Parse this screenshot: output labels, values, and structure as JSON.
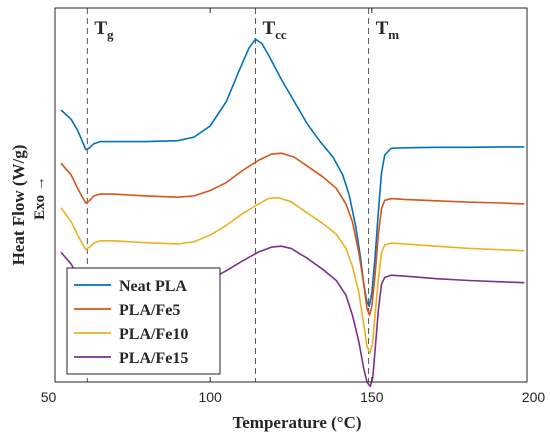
{
  "chart_data": {
    "type": "line",
    "xlabel": "Temperature (°C)",
    "ylabel": "Heat Flow (W/g)",
    "exo_label": "Exo →",
    "xlim": [
      52,
      198
    ],
    "ylim": [
      -5.2,
      3.2
    ],
    "x_ticks": [
      50,
      100,
      150,
      200
    ],
    "x_tick_labels": [
      "50",
      "100",
      "150",
      "200"
    ],
    "y_ticks_visible": false,
    "grid": false,
    "legend_position": "bottom-left",
    "markers": [
      {
        "main": "T",
        "sub": "g",
        "x": 62
      },
      {
        "main": "T",
        "sub": "cc",
        "x": 114
      },
      {
        "main": "T",
        "sub": "m",
        "x": 149
      }
    ],
    "series": [
      {
        "name": "Neat PLA",
        "color": "#0072BD",
        "points": [
          [
            54,
            0.9
          ],
          [
            57,
            0.7
          ],
          [
            59,
            0.45
          ],
          [
            60.5,
            0.2
          ],
          [
            61.5,
            0.02
          ],
          [
            62.5,
            0.05
          ],
          [
            64,
            0.15
          ],
          [
            66,
            0.2
          ],
          [
            70,
            0.2
          ],
          [
            80,
            0.2
          ],
          [
            90,
            0.22
          ],
          [
            95,
            0.3
          ],
          [
            100,
            0.55
          ],
          [
            105,
            1.1
          ],
          [
            109,
            1.8
          ],
          [
            112,
            2.3
          ],
          [
            114,
            2.5
          ],
          [
            116,
            2.4
          ],
          [
            118,
            2.15
          ],
          [
            122,
            1.6
          ],
          [
            126,
            1.1
          ],
          [
            130,
            0.6
          ],
          [
            134,
            0.2
          ],
          [
            138,
            -0.15
          ],
          [
            141,
            -0.55
          ],
          [
            143,
            -1.0
          ],
          [
            145,
            -1.7
          ],
          [
            146.5,
            -2.4
          ],
          [
            147.5,
            -3.0
          ],
          [
            148.5,
            -3.4
          ],
          [
            149.2,
            -3.5
          ],
          [
            150,
            -3.2
          ],
          [
            151,
            -2.4
          ],
          [
            152,
            -1.4
          ],
          [
            153,
            -0.5
          ],
          [
            154,
            -0.1
          ],
          [
            156,
            0.05
          ],
          [
            160,
            0.06
          ],
          [
            170,
            0.07
          ],
          [
            180,
            0.07
          ],
          [
            190,
            0.08
          ],
          [
            197,
            0.08
          ]
        ]
      },
      {
        "name": "PLA/Fe5",
        "color": "#D95319",
        "points": [
          [
            54,
            -0.3
          ],
          [
            57,
            -0.55
          ],
          [
            59,
            -0.85
          ],
          [
            60.5,
            -1.05
          ],
          [
            61.5,
            -1.18
          ],
          [
            62.5,
            -1.14
          ],
          [
            64,
            -1.02
          ],
          [
            66,
            -0.98
          ],
          [
            70,
            -0.98
          ],
          [
            80,
            -1.02
          ],
          [
            90,
            -1.05
          ],
          [
            95,
            -1.02
          ],
          [
            100,
            -0.9
          ],
          [
            105,
            -0.72
          ],
          [
            110,
            -0.45
          ],
          [
            115,
            -0.22
          ],
          [
            119,
            -0.08
          ],
          [
            122,
            -0.06
          ],
          [
            126,
            -0.15
          ],
          [
            130,
            -0.35
          ],
          [
            135,
            -0.6
          ],
          [
            139,
            -0.85
          ],
          [
            142,
            -1.2
          ],
          [
            144,
            -1.6
          ],
          [
            146,
            -2.3
          ],
          [
            147.5,
            -3.0
          ],
          [
            148.5,
            -3.55
          ],
          [
            149.3,
            -3.7
          ],
          [
            150,
            -3.5
          ],
          [
            151,
            -2.8
          ],
          [
            152,
            -1.9
          ],
          [
            153,
            -1.3
          ],
          [
            154,
            -1.12
          ],
          [
            156,
            -1.08
          ],
          [
            160,
            -1.1
          ],
          [
            170,
            -1.13
          ],
          [
            180,
            -1.16
          ],
          [
            190,
            -1.18
          ],
          [
            197,
            -1.2
          ]
        ]
      },
      {
        "name": "PLA/Fe10",
        "color": "#EDB120",
        "points": [
          [
            54,
            -1.3
          ],
          [
            57,
            -1.6
          ],
          [
            59,
            -1.9
          ],
          [
            60.5,
            -2.1
          ],
          [
            61.5,
            -2.22
          ],
          [
            62.5,
            -2.18
          ],
          [
            64,
            -2.08
          ],
          [
            66,
            -2.03
          ],
          [
            70,
            -2.03
          ],
          [
            80,
            -2.07
          ],
          [
            90,
            -2.1
          ],
          [
            95,
            -2.05
          ],
          [
            100,
            -1.9
          ],
          [
            105,
            -1.68
          ],
          [
            110,
            -1.42
          ],
          [
            115,
            -1.2
          ],
          [
            118,
            -1.08
          ],
          [
            121,
            -1.06
          ],
          [
            125,
            -1.15
          ],
          [
            130,
            -1.4
          ],
          [
            135,
            -1.65
          ],
          [
            139,
            -1.88
          ],
          [
            142,
            -2.2
          ],
          [
            144,
            -2.6
          ],
          [
            146,
            -3.2
          ],
          [
            147.5,
            -3.9
          ],
          [
            148.5,
            -4.4
          ],
          [
            149.4,
            -4.55
          ],
          [
            150.2,
            -4.35
          ],
          [
            151,
            -3.7
          ],
          [
            152,
            -2.9
          ],
          [
            153,
            -2.3
          ],
          [
            154,
            -2.12
          ],
          [
            156,
            -2.08
          ],
          [
            160,
            -2.1
          ],
          [
            170,
            -2.15
          ],
          [
            180,
            -2.2
          ],
          [
            190,
            -2.23
          ],
          [
            197,
            -2.25
          ]
        ]
      },
      {
        "name": "PLA/Fe15",
        "color": "#7E2F8E",
        "points": [
          [
            54,
            -2.3
          ],
          [
            57,
            -2.55
          ],
          [
            59,
            -2.82
          ],
          [
            60.5,
            -3.05
          ],
          [
            61.5,
            -3.18
          ],
          [
            62.5,
            -3.14
          ],
          [
            64,
            -3.03
          ],
          [
            66,
            -2.98
          ],
          [
            70,
            -2.98
          ],
          [
            80,
            -3.0
          ],
          [
            90,
            -3.05
          ],
          [
            95,
            -3.02
          ],
          [
            100,
            -2.9
          ],
          [
            105,
            -2.7
          ],
          [
            110,
            -2.48
          ],
          [
            115,
            -2.28
          ],
          [
            119,
            -2.17
          ],
          [
            122,
            -2.15
          ],
          [
            125,
            -2.2
          ],
          [
            130,
            -2.42
          ],
          [
            135,
            -2.68
          ],
          [
            139,
            -2.92
          ],
          [
            142,
            -3.25
          ],
          [
            144,
            -3.7
          ],
          [
            146,
            -4.3
          ],
          [
            147.5,
            -4.9
          ],
          [
            148.5,
            -5.2
          ],
          [
            149.5,
            -5.3
          ],
          [
            150.3,
            -5.1
          ],
          [
            151,
            -4.5
          ],
          [
            152,
            -3.6
          ],
          [
            153,
            -3.0
          ],
          [
            154,
            -2.85
          ],
          [
            156,
            -2.8
          ],
          [
            160,
            -2.82
          ],
          [
            170,
            -2.88
          ],
          [
            180,
            -2.92
          ],
          [
            190,
            -2.95
          ],
          [
            197,
            -2.97
          ]
        ]
      }
    ]
  }
}
